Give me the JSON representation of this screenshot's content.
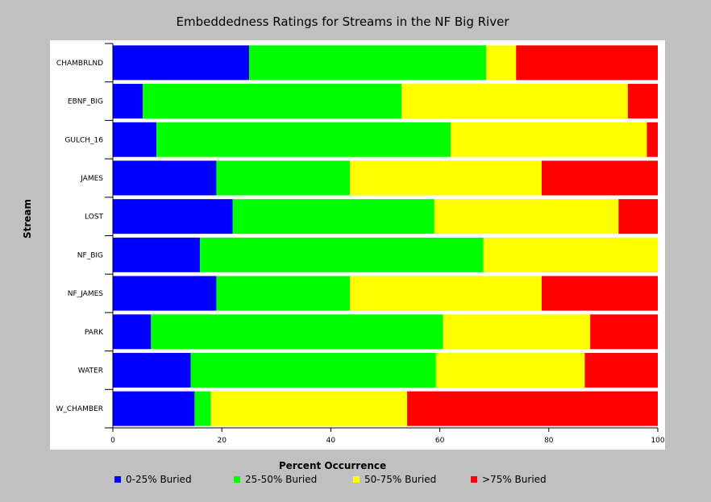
{
  "chart_data": {
    "type": "bar",
    "orientation": "horizontal",
    "stacked": true,
    "title": "Embeddedness Ratings for Streams in the NF Big River",
    "xlabel": "Percent Occurrence",
    "ylabel": "Stream",
    "xlim": [
      0,
      100
    ],
    "xticks": [
      "0",
      "20",
      "40",
      "60",
      "80",
      "100"
    ],
    "categories": [
      "CHAMBRLND",
      "EBNF_BIG",
      "GULCH_16",
      "JAMES",
      "LOST",
      "NF_BIG",
      "NF_JAMES",
      "PARK",
      "WATER",
      "W_CHAMBER"
    ],
    "series": [
      {
        "name": "0-25% Buried",
        "color": "#0000ff",
        "values": [
          25,
          5.5,
          8,
          19,
          22,
          16,
          19,
          7,
          14.3,
          15
        ]
      },
      {
        "name": "25-50% Buried",
        "color": "#00ff00",
        "values": [
          43.5,
          47.5,
          54,
          24.5,
          37,
          52,
          24.5,
          53.6,
          45,
          3
        ]
      },
      {
        "name": "50-75% Buried",
        "color": "#ffff00",
        "values": [
          5.5,
          41.5,
          36,
          35.2,
          33.8,
          32,
          35.2,
          27,
          27.3,
          36
        ]
      },
      {
        "name": ">75% Buried",
        "color": "#ff0000",
        "values": [
          26,
          5.5,
          2,
          21.3,
          7.2,
          0,
          21.3,
          12.4,
          13.4,
          46
        ]
      }
    ],
    "legend_position": "bottom",
    "grid": false
  }
}
